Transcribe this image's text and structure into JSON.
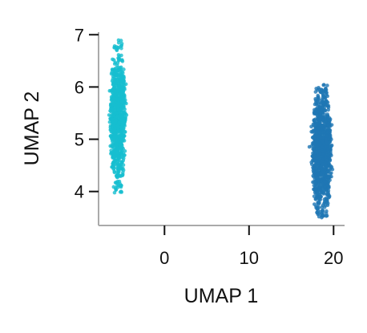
{
  "chart_data": {
    "type": "scatter",
    "xlabel": "UMAP 1",
    "ylabel": "UMAP 2",
    "xlim": [
      -7.8,
      21.3
    ],
    "ylim": [
      3.35,
      7.05
    ],
    "x_ticks": [
      0,
      10,
      20
    ],
    "y_ticks": [
      4,
      5,
      6,
      7
    ],
    "grid": false,
    "legend": "none",
    "series": [
      {
        "color": "#17becf",
        "x_center": -5.5,
        "x_spread": 1.6,
        "y_range": [
          3.95,
          6.9
        ],
        "approx_points": 800
      },
      {
        "color": "#1f77b4",
        "x_center": 18.6,
        "x_spread": 2.0,
        "y_range": [
          3.5,
          6.05
        ],
        "approx_points": 1100
      }
    ]
  }
}
